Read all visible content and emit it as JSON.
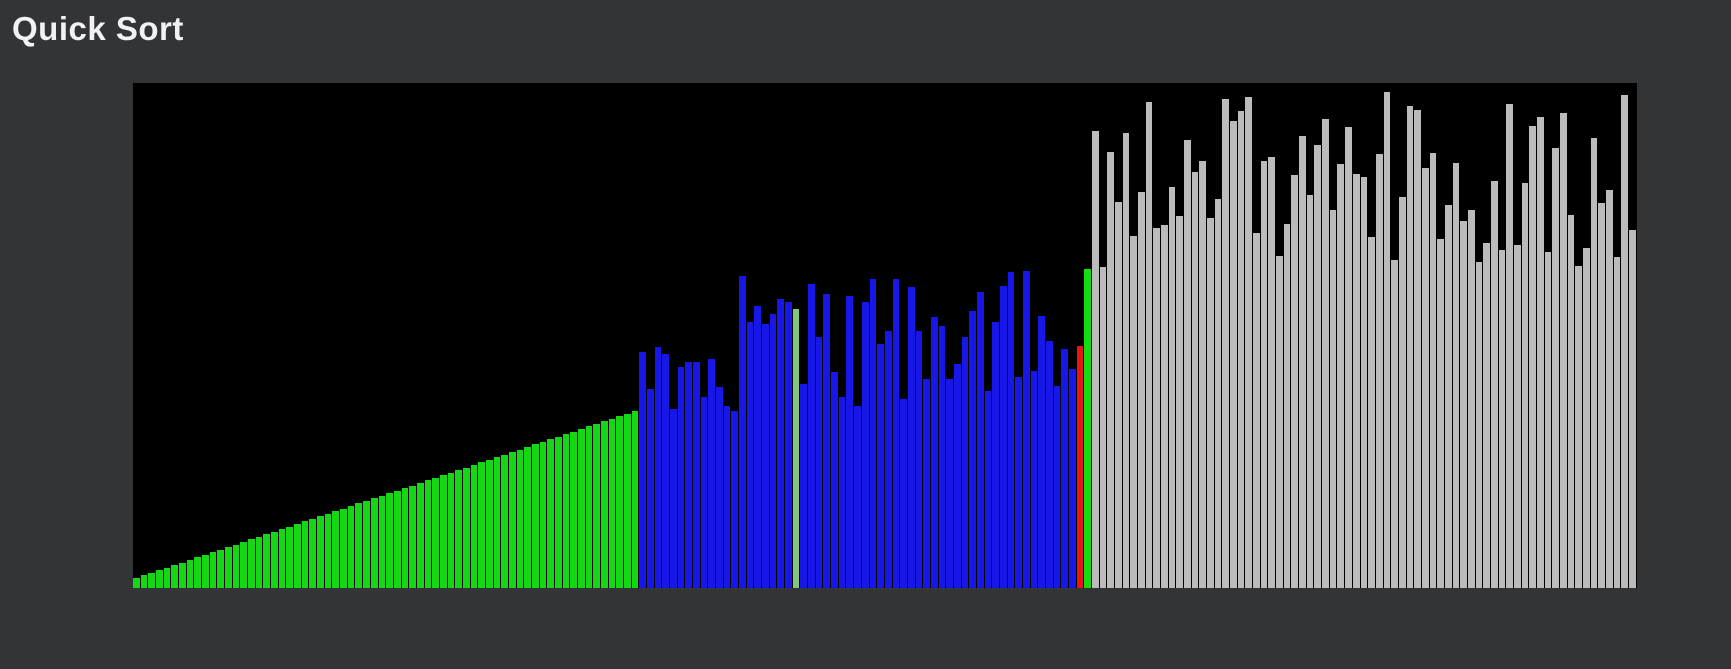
{
  "header": {
    "title": "Quick Sort"
  },
  "chart_data": {
    "type": "bar",
    "title": "Quick Sort",
    "xlabel": "",
    "ylabel": "",
    "ylim": [
      0,
      505
    ],
    "grid": false,
    "legend": "none",
    "background": "#000000",
    "description": "Quick sort visualization: left ramp = sorted values (green), middle = active partition (blue) with light-green pivot marker, red + green cursor bars at partition boundary, right = unsorted values (gray). Heights are canvas pixels.",
    "colors": {
      "sorted_green": "#15d715",
      "active_blue": "#1717e8",
      "pivot_lightgreen": "#7cc87c",
      "cursor_red": "#e81510",
      "marker_green": "#11dd11",
      "unsorted_gray": "#bbbbbb"
    },
    "segments": [
      {
        "color_key": "sorted_green",
        "heights": [
          10,
          13,
          15,
          18,
          20,
          23,
          25,
          28,
          31,
          33,
          36,
          38,
          41,
          43,
          46,
          49,
          51,
          54,
          56,
          59,
          61,
          64,
          67,
          69,
          72,
          74,
          77,
          79,
          82,
          85,
          87,
          90,
          92,
          95,
          97,
          100,
          102,
          105,
          108,
          110,
          113,
          115,
          118,
          120,
          123,
          126,
          128,
          131,
          133,
          136,
          138,
          141,
          144,
          146,
          149,
          151,
          154,
          156,
          159,
          162,
          164,
          167,
          169,
          172,
          174,
          177
        ]
      },
      {
        "color_key": "active_blue",
        "heights": [
          236,
          199,
          241,
          234,
          179,
          221,
          226,
          226,
          191,
          229,
          201,
          182,
          177,
          312,
          266,
          282,
          264,
          274,
          289,
          286
        ]
      },
      {
        "color_key": "pivot_lightgreen",
        "heights": [
          279
        ]
      },
      {
        "color_key": "active_blue",
        "heights": [
          204,
          304,
          251,
          294,
          216,
          191,
          292,
          182,
          286,
          309,
          244,
          257,
          309,
          189,
          301,
          257,
          209,
          271,
          262,
          209,
          224,
          251,
          277,
          296,
          197,
          266,
          302,
          316,
          211,
          317,
          217,
          272,
          247,
          202,
          239,
          219
        ]
      },
      {
        "color_key": "cursor_red",
        "heights": [
          242
        ]
      },
      {
        "color_key": "marker_green",
        "heights": [
          319
        ]
      },
      {
        "color_key": "unsorted_gray",
        "heights": [
          457,
          321,
          436,
          386,
          455,
          352,
          396,
          486,
          360,
          363,
          401,
          372,
          448,
          416,
          427,
          370,
          389,
          489,
          467,
          477,
          491,
          355,
          427,
          431,
          332,
          364,
          413,
          452,
          393,
          443,
          469,
          378,
          424,
          461,
          414,
          411,
          351,
          434,
          496,
          328,
          391,
          482,
          478,
          420,
          435,
          349,
          383,
          425,
          367,
          378,
          326,
          345,
          407,
          338,
          484,
          343,
          405,
          462,
          471,
          336,
          440,
          475,
          373,
          322,
          340,
          450,
          385,
          398,
          331,
          493,
          358
        ]
      }
    ]
  }
}
